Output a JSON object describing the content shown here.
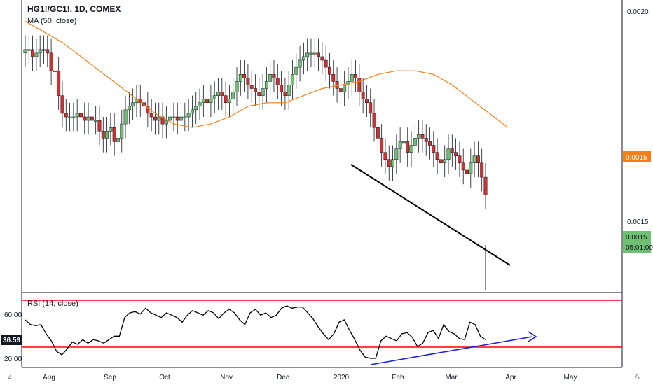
{
  "header": {
    "title": "HG1!/GC1!, 1D, COMEX",
    "ma_label": "MA (50, close)",
    "rsi_label": "RSI (14, close)"
  },
  "price_axis": {
    "ticks": [
      "0.0020",
      "0.0015",
      "0.0015"
    ],
    "ma_badge": "0.0015",
    "price_badge": "0.0015",
    "countdown": "05:01:00"
  },
  "rsi_axis": {
    "ticks": [
      "60.00",
      "20.00"
    ],
    "current": "36.59"
  },
  "time_axis": {
    "labels": [
      "Aug",
      "Sep",
      "Oct",
      "Nov",
      "Dec",
      "2020",
      "Feb",
      "Mar",
      "Apr",
      "May"
    ]
  },
  "footer": {
    "left_icon": "Z",
    "right_icon": "A"
  },
  "colors": {
    "up": "#6fbf73",
    "down": "#d0302f",
    "ma": "#f57f17",
    "rsi_line": "#000000",
    "rsi_band": "#ff0000",
    "trend_price": "#000000",
    "trend_rsi": "#1a20d6",
    "price_badge": "#6fbf73",
    "ma_badge": "#f57f17"
  },
  "chart_data": {
    "type": "candlestick",
    "symbol": "HG1!/GC1!",
    "interval": "1D",
    "exchange": "COMEX",
    "period": "Jul 2019 – Mar 2020",
    "ma_period": 50,
    "rsi_period": 14,
    "rsi_levels": [
      70,
      30
    ],
    "price_values": [
      0.00192,
      0.00192,
      0.0019,
      0.00191,
      0.00192,
      0.00192,
      0.00191,
      0.00186,
      0.00186,
      0.00179,
      0.00174,
      0.00173,
      0.00173,
      0.00173,
      0.00174,
      0.00173,
      0.00172,
      0.00173,
      0.00172,
      0.00172,
      0.00169,
      0.00167,
      0.00169,
      0.0017,
      0.00166,
      0.00167,
      0.00171,
      0.00175,
      0.00176,
      0.00177,
      0.00178,
      0.00177,
      0.00176,
      0.00174,
      0.00173,
      0.00172,
      0.00173,
      0.00171,
      0.00172,
      0.00173,
      0.00173,
      0.00172,
      0.00173,
      0.00173,
      0.00174,
      0.00175,
      0.00176,
      0.00177,
      0.00178,
      0.00177,
      0.00178,
      0.00179,
      0.0018,
      0.00179,
      0.00177,
      0.00178,
      0.0018,
      0.00183,
      0.00185,
      0.00184,
      0.00182,
      0.00181,
      0.0018,
      0.00179,
      0.00181,
      0.00183,
      0.00185,
      0.00184,
      0.00182,
      0.0018,
      0.00179,
      0.00182,
      0.00185,
      0.00187,
      0.00189,
      0.0019,
      0.00191,
      0.00191,
      0.00191,
      0.0019,
      0.00189,
      0.00187,
      0.00185,
      0.00183,
      0.00181,
      0.0018,
      0.00182,
      0.00183,
      0.00185,
      0.00184,
      0.0018,
      0.00178,
      0.00177,
      0.00174,
      0.0017,
      0.00167,
      0.00163,
      0.00161,
      0.00159,
      0.00161,
      0.00164,
      0.00166,
      0.00166,
      0.00163,
      0.00165,
      0.00167,
      0.00168,
      0.00167,
      0.00166,
      0.00165,
      0.00163,
      0.00161,
      0.0016,
      0.00161,
      0.00164,
      0.00163,
      0.00162,
      0.0016,
      0.00158,
      0.00157,
      0.0016,
      0.00162,
      0.0016,
      0.00156,
      0.00151
    ],
    "ma_values": [
      0.002,
      0.00197,
      0.00194,
      0.0019,
      0.00186,
      0.00182,
      0.00178,
      0.00174,
      0.00171,
      0.0017,
      0.00171,
      0.00173,
      0.00176,
      0.00177,
      0.00177,
      0.00179,
      0.00181,
      0.00182,
      0.00183,
      0.00185,
      0.00186,
      0.00186,
      0.00185,
      0.00182,
      0.00178,
      0.00174,
      0.0017
    ],
    "ma_start_index": 0,
    "ma_step": 5,
    "rsi_values": [
      54,
      50,
      49,
      50,
      42,
      36,
      27,
      24,
      29,
      35,
      33,
      37,
      34,
      37,
      36,
      34,
      37,
      40,
      40,
      56,
      60,
      61,
      59,
      64,
      60,
      58,
      56,
      60,
      58,
      56,
      52,
      58,
      62,
      60,
      58,
      62,
      60,
      55,
      60,
      63,
      60,
      54,
      50,
      60,
      63,
      58,
      60,
      56,
      58,
      64,
      66,
      64,
      65,
      65,
      60,
      55,
      48,
      42,
      37,
      42,
      52,
      54,
      45,
      37,
      28,
      22,
      21,
      21,
      36,
      40,
      38,
      36,
      42,
      43,
      39,
      31,
      34,
      43,
      45,
      38,
      50,
      44,
      42,
      38,
      37,
      52,
      50,
      40,
      37
    ],
    "trendline_price": {
      "from": [
        0.00156,
        "Jan"
      ],
      "to": [
        0.00137,
        "Mar"
      ]
    },
    "trendline_rsi": {
      "from": [
        20,
        "Feb"
      ],
      "to": [
        38,
        "Apr"
      ]
    },
    "ylim": [
      0.00125,
      0.00205
    ],
    "rsi_ylim": [
      15,
      75
    ]
  }
}
